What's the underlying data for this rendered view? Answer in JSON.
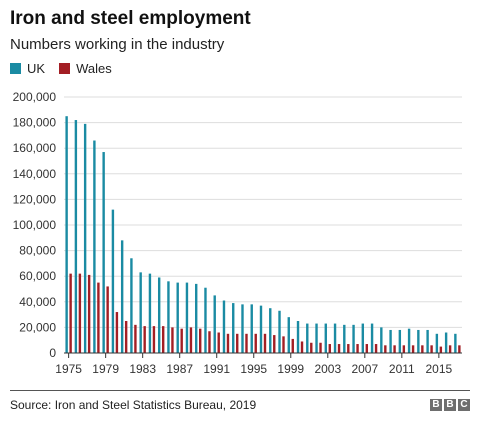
{
  "chart_data": {
    "type": "bar",
    "title": "Iron and steel employment",
    "subtitle": "Numbers working in the industry",
    "xlabel": "",
    "ylabel": "",
    "ylim": [
      0,
      200000
    ],
    "yticks": [
      0,
      20000,
      40000,
      60000,
      80000,
      100000,
      120000,
      140000,
      160000,
      180000,
      200000
    ],
    "ytick_labels": [
      "0",
      "20,000",
      "40,000",
      "60,000",
      "80,000",
      "100,000",
      "120,000",
      "140,000",
      "160,000",
      "180,000",
      "200,000"
    ],
    "xtick_labels": [
      "1975",
      "1979",
      "1983",
      "1987",
      "1991",
      "1995",
      "1999",
      "2003",
      "2007",
      "2011",
      "2015"
    ],
    "categories": [
      1975,
      1976,
      1977,
      1978,
      1979,
      1980,
      1981,
      1982,
      1983,
      1984,
      1985,
      1986,
      1987,
      1988,
      1989,
      1990,
      1991,
      1992,
      1993,
      1994,
      1995,
      1996,
      1997,
      1998,
      1999,
      2000,
      2001,
      2002,
      2003,
      2004,
      2005,
      2006,
      2007,
      2008,
      2009,
      2010,
      2011,
      2012,
      2013,
      2014,
      2015,
      2016,
      2017
    ],
    "series": [
      {
        "name": "UK",
        "color": "#1a8ba3",
        "values": [
          185000,
          182000,
          179000,
          166000,
          157000,
          112000,
          88000,
          74000,
          63000,
          62000,
          59000,
          56000,
          55000,
          55000,
          54000,
          51000,
          45000,
          41000,
          39000,
          38000,
          38000,
          37000,
          35000,
          33000,
          28000,
          25000,
          23000,
          23000,
          23000,
          23000,
          22000,
          22000,
          23000,
          23000,
          20000,
          18000,
          18000,
          19000,
          18000,
          18000,
          15000,
          16000,
          15000
        ]
      },
      {
        "name": "Wales",
        "color": "#a31e24",
        "values": [
          62000,
          62000,
          61000,
          55000,
          52000,
          32000,
          25000,
          22000,
          21000,
          21000,
          21000,
          20000,
          19000,
          20000,
          19000,
          17000,
          16000,
          15000,
          15000,
          15000,
          15000,
          15000,
          14000,
          13000,
          11000,
          9000,
          8000,
          8000,
          7000,
          7000,
          7000,
          7000,
          7000,
          7000,
          6000,
          6000,
          6000,
          6000,
          6000,
          6000,
          5000,
          6000,
          6000
        ]
      }
    ],
    "legend_position": "top-left",
    "grid": true
  },
  "footer": {
    "source": "Source: Iron and Steel Statistics Bureau, 2019",
    "logo_letters": [
      "B",
      "B",
      "C"
    ]
  }
}
